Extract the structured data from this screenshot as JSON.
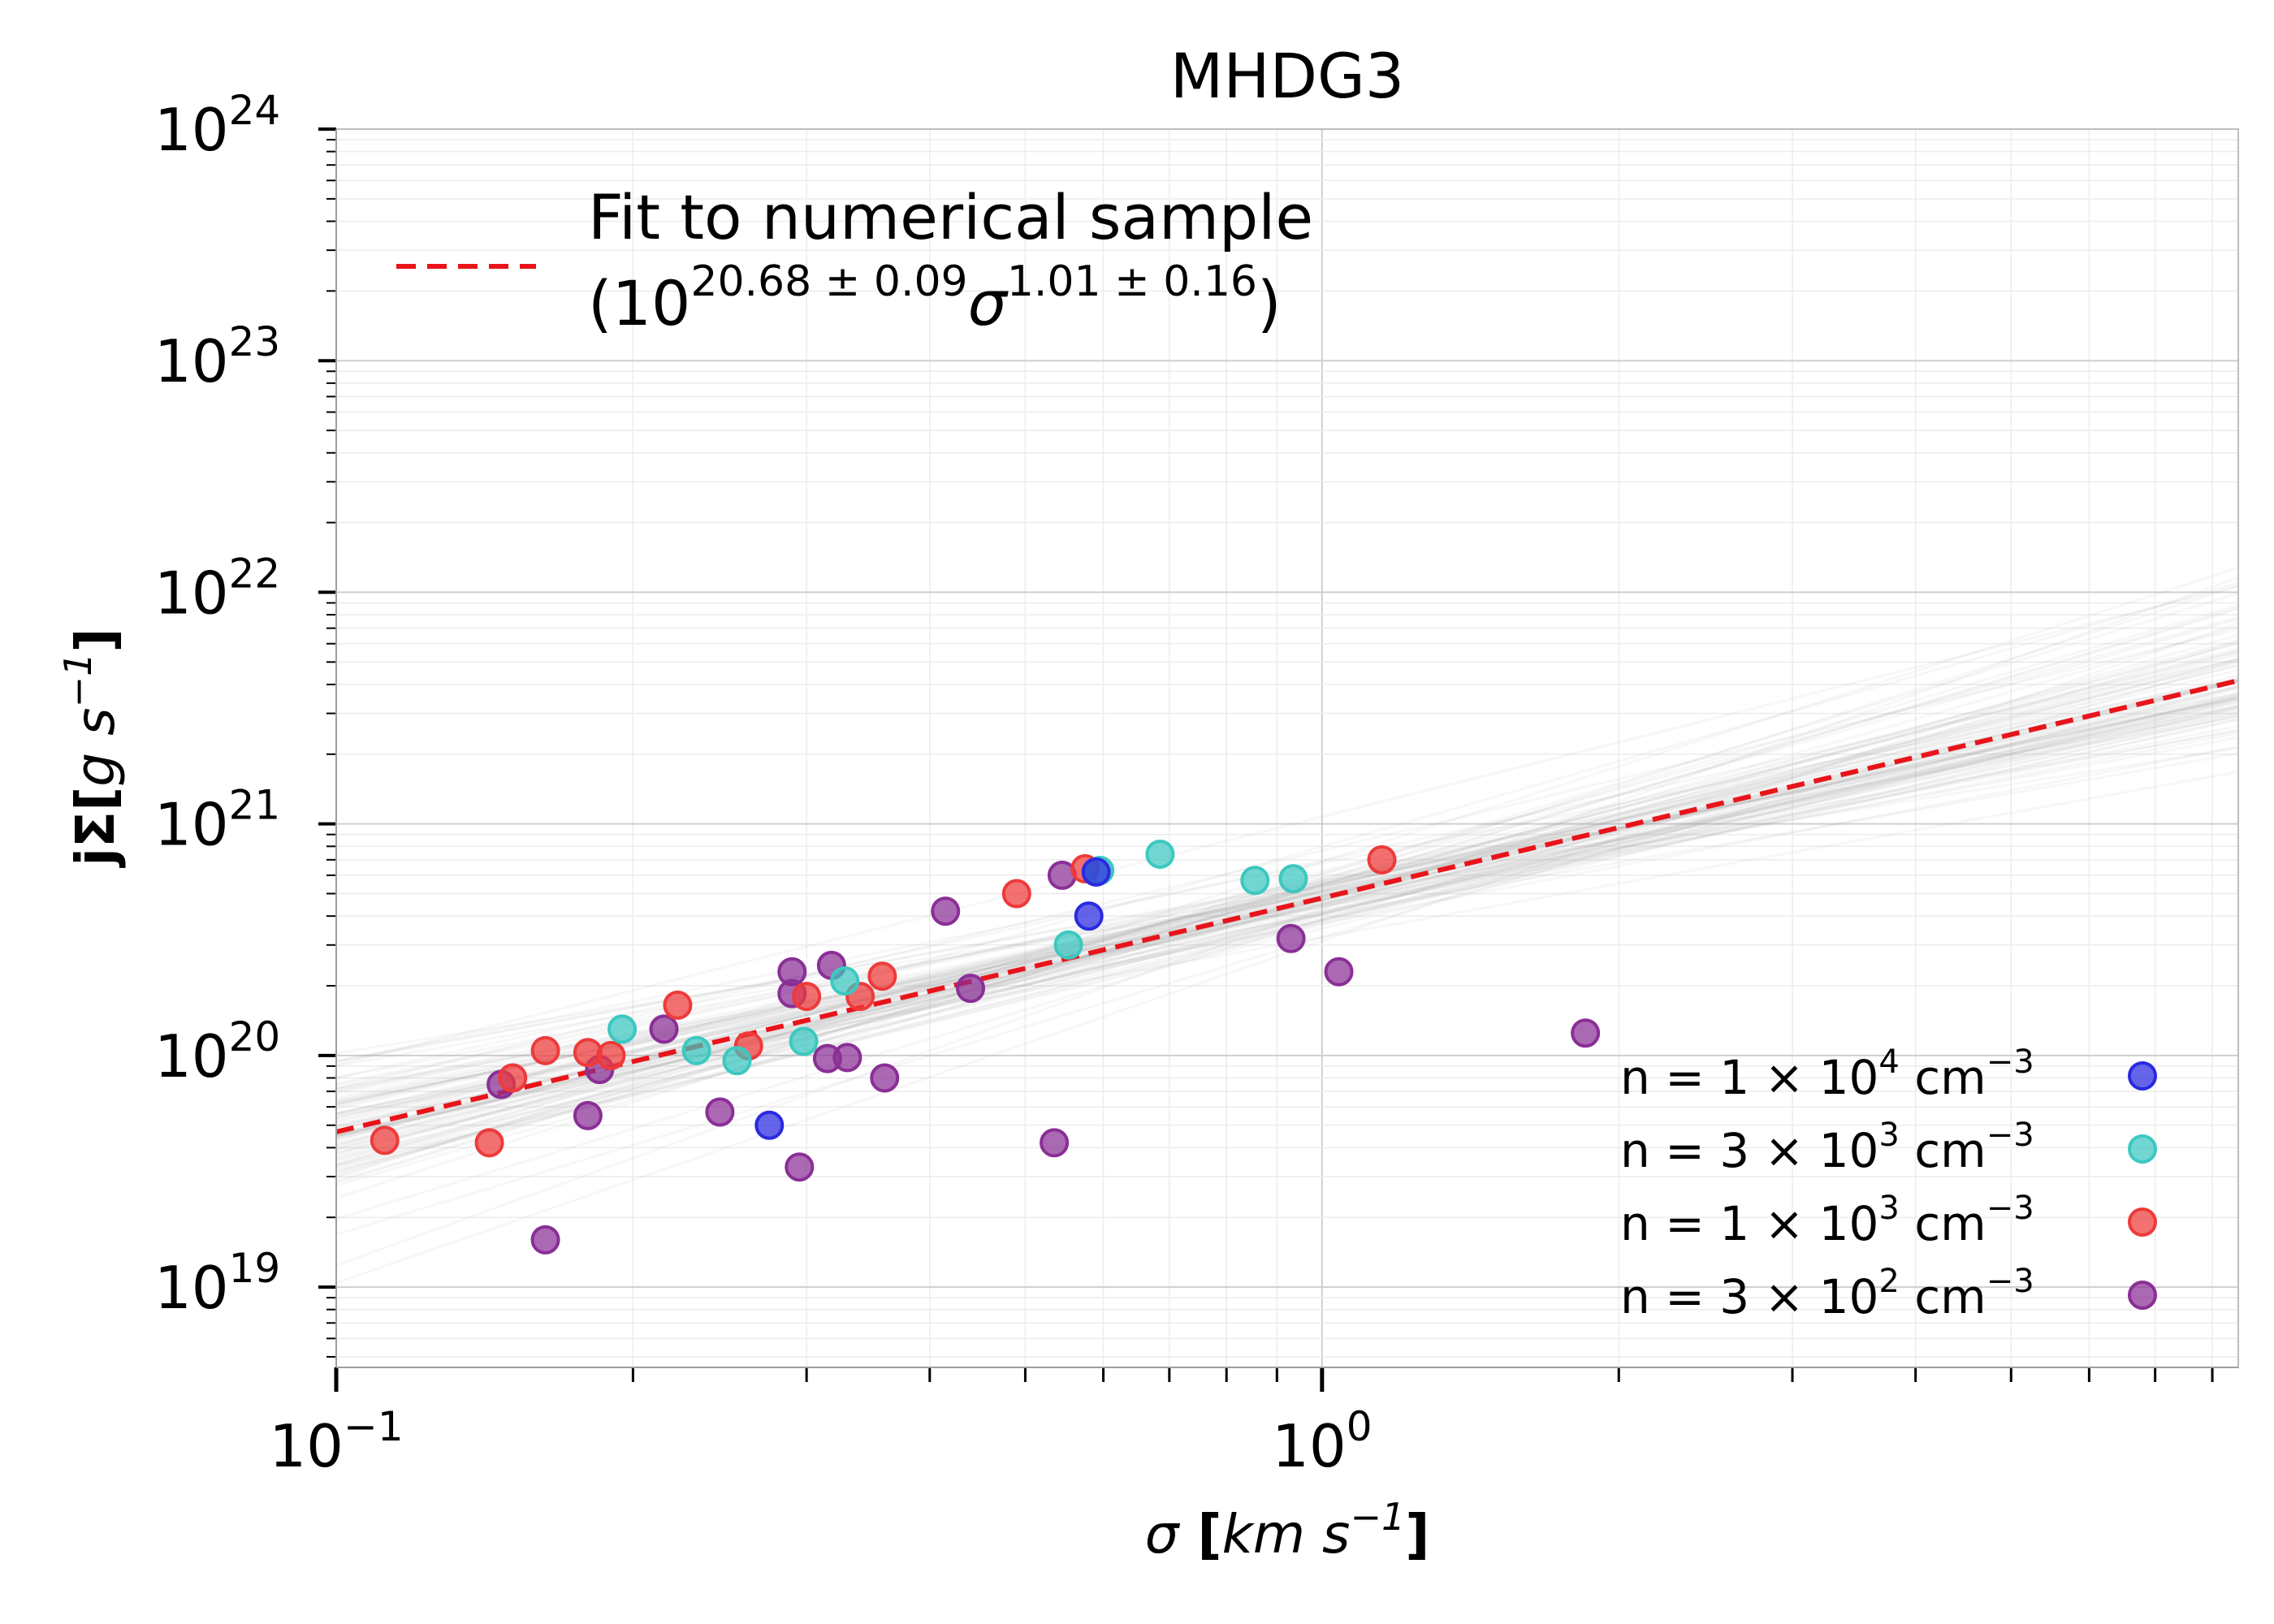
{
  "chart_data": {
    "type": "scatter",
    "title": "MHDG3",
    "xlabel": "σ [km s⁻¹]",
    "ylabel": "jΣ[g s⁻¹]",
    "x_scale": "log",
    "y_scale": "log",
    "xlim": [
      0.1,
      8.5
    ],
    "ylim": [
      4.5e+18,
      1e+24
    ],
    "grid": true,
    "x_ticks": [
      {
        "base": "10",
        "exp": "−1",
        "value": 0.1
      },
      {
        "base": "10",
        "exp": "0",
        "value": 1
      }
    ],
    "y_ticks": [
      {
        "base": "10",
        "exp": "19",
        "value": 1e+19
      },
      {
        "base": "10",
        "exp": "20",
        "value": 1e+20
      },
      {
        "base": "10",
        "exp": "21",
        "value": 1e+21
      },
      {
        "base": "10",
        "exp": "22",
        "value": 1e+22
      },
      {
        "base": "10",
        "exp": "23",
        "value": 1e+23
      },
      {
        "base": "10",
        "exp": "24",
        "value": 1e+24
      }
    ],
    "fit": {
      "label_line1": "Fit to numerical sample",
      "label_line2": "(10^{20.68 ± 0.09} σ^{1.01 ± 0.16})",
      "open_paren": "(10",
      "exp1": "20.68 ± 0.09",
      "sigma": "σ",
      "exp2": "1.01 ± 0.16",
      "close_paren": ")",
      "log_amplitude": 20.68,
      "slope": 1.01,
      "color": "#e8141a"
    },
    "legend_fit_position": "top-left",
    "legend_series_position": "bottom-right",
    "series": [
      {
        "name": "n = 1 × 10⁴ cm⁻³",
        "label_prefix": "n  = 1 × 10",
        "label_exp": "4",
        "label_unit": " cm",
        "label_unit_exp": "−3",
        "color": "#2a2ae0",
        "points": [
          [
            0.275,
            5e+19
          ],
          [
            0.58,
            4e+20
          ],
          [
            0.59,
            6.2e+20
          ]
        ]
      },
      {
        "name": "n = 3 × 10³ cm⁻³",
        "label_prefix": "n  = 3 × 10",
        "label_exp": "3",
        "label_unit": " cm",
        "label_unit_exp": "−3",
        "color": "#3cc8c0",
        "points": [
          [
            0.195,
            1.3e+20
          ],
          [
            0.232,
            1.05e+20
          ],
          [
            0.255,
            9.5e+19
          ],
          [
            0.298,
            1.15e+20
          ],
          [
            0.328,
            2.1e+20
          ],
          [
            0.553,
            3e+20
          ],
          [
            0.595,
            6.3e+20
          ],
          [
            0.685,
            7.4e+20
          ],
          [
            0.855,
            5.7e+20
          ],
          [
            0.935,
            5.8e+20
          ]
        ]
      },
      {
        "name": "n = 1 × 10³ cm⁻³",
        "label_prefix": "n  = 1 × 10",
        "label_exp": "3",
        "label_unit": " cm",
        "label_unit_exp": "−3",
        "color": "#ee3a3a",
        "points": [
          [
            0.112,
            4.3e+19
          ],
          [
            0.143,
            4.2e+19
          ],
          [
            0.151,
            8e+19
          ],
          [
            0.163,
            1.05e+20
          ],
          [
            0.18,
            1.03e+20
          ],
          [
            0.19,
            1e+20
          ],
          [
            0.222,
            1.65e+20
          ],
          [
            0.262,
            1.1e+20
          ],
          [
            0.3,
            1.8e+20
          ],
          [
            0.34,
            1.8e+20
          ],
          [
            0.358,
            2.2e+20
          ],
          [
            0.49,
            5e+20
          ],
          [
            0.575,
            6.4e+20
          ],
          [
            1.15,
            7e+20
          ]
        ]
      },
      {
        "name": "n = 3 × 10² cm⁻³",
        "label_prefix": "n  = 3 × 10",
        "label_exp": "2",
        "label_unit": " cm",
        "label_unit_exp": "−3",
        "color": "#8a2f96",
        "points": [
          [
            0.147,
            7.5e+19
          ],
          [
            0.163,
            1.6e+19
          ],
          [
            0.18,
            5.5e+19
          ],
          [
            0.185,
            8.7e+19
          ],
          [
            0.215,
            1.3e+20
          ],
          [
            0.245,
            5.7e+19
          ],
          [
            0.29,
            2.3e+20
          ],
          [
            0.29,
            1.85e+20
          ],
          [
            0.295,
            3.3e+19
          ],
          [
            0.315,
            9.7e+19
          ],
          [
            0.318,
            2.45e+20
          ],
          [
            0.33,
            9.8e+19
          ],
          [
            0.36,
            8e+19
          ],
          [
            0.415,
            4.2e+20
          ],
          [
            0.44,
            1.95e+20
          ],
          [
            0.535,
            4.2e+19
          ],
          [
            0.545,
            6e+20
          ],
          [
            0.93,
            3.2e+20
          ],
          [
            1.04,
            2.3e+20
          ],
          [
            1.85,
            1.25e+20
          ]
        ]
      }
    ]
  }
}
